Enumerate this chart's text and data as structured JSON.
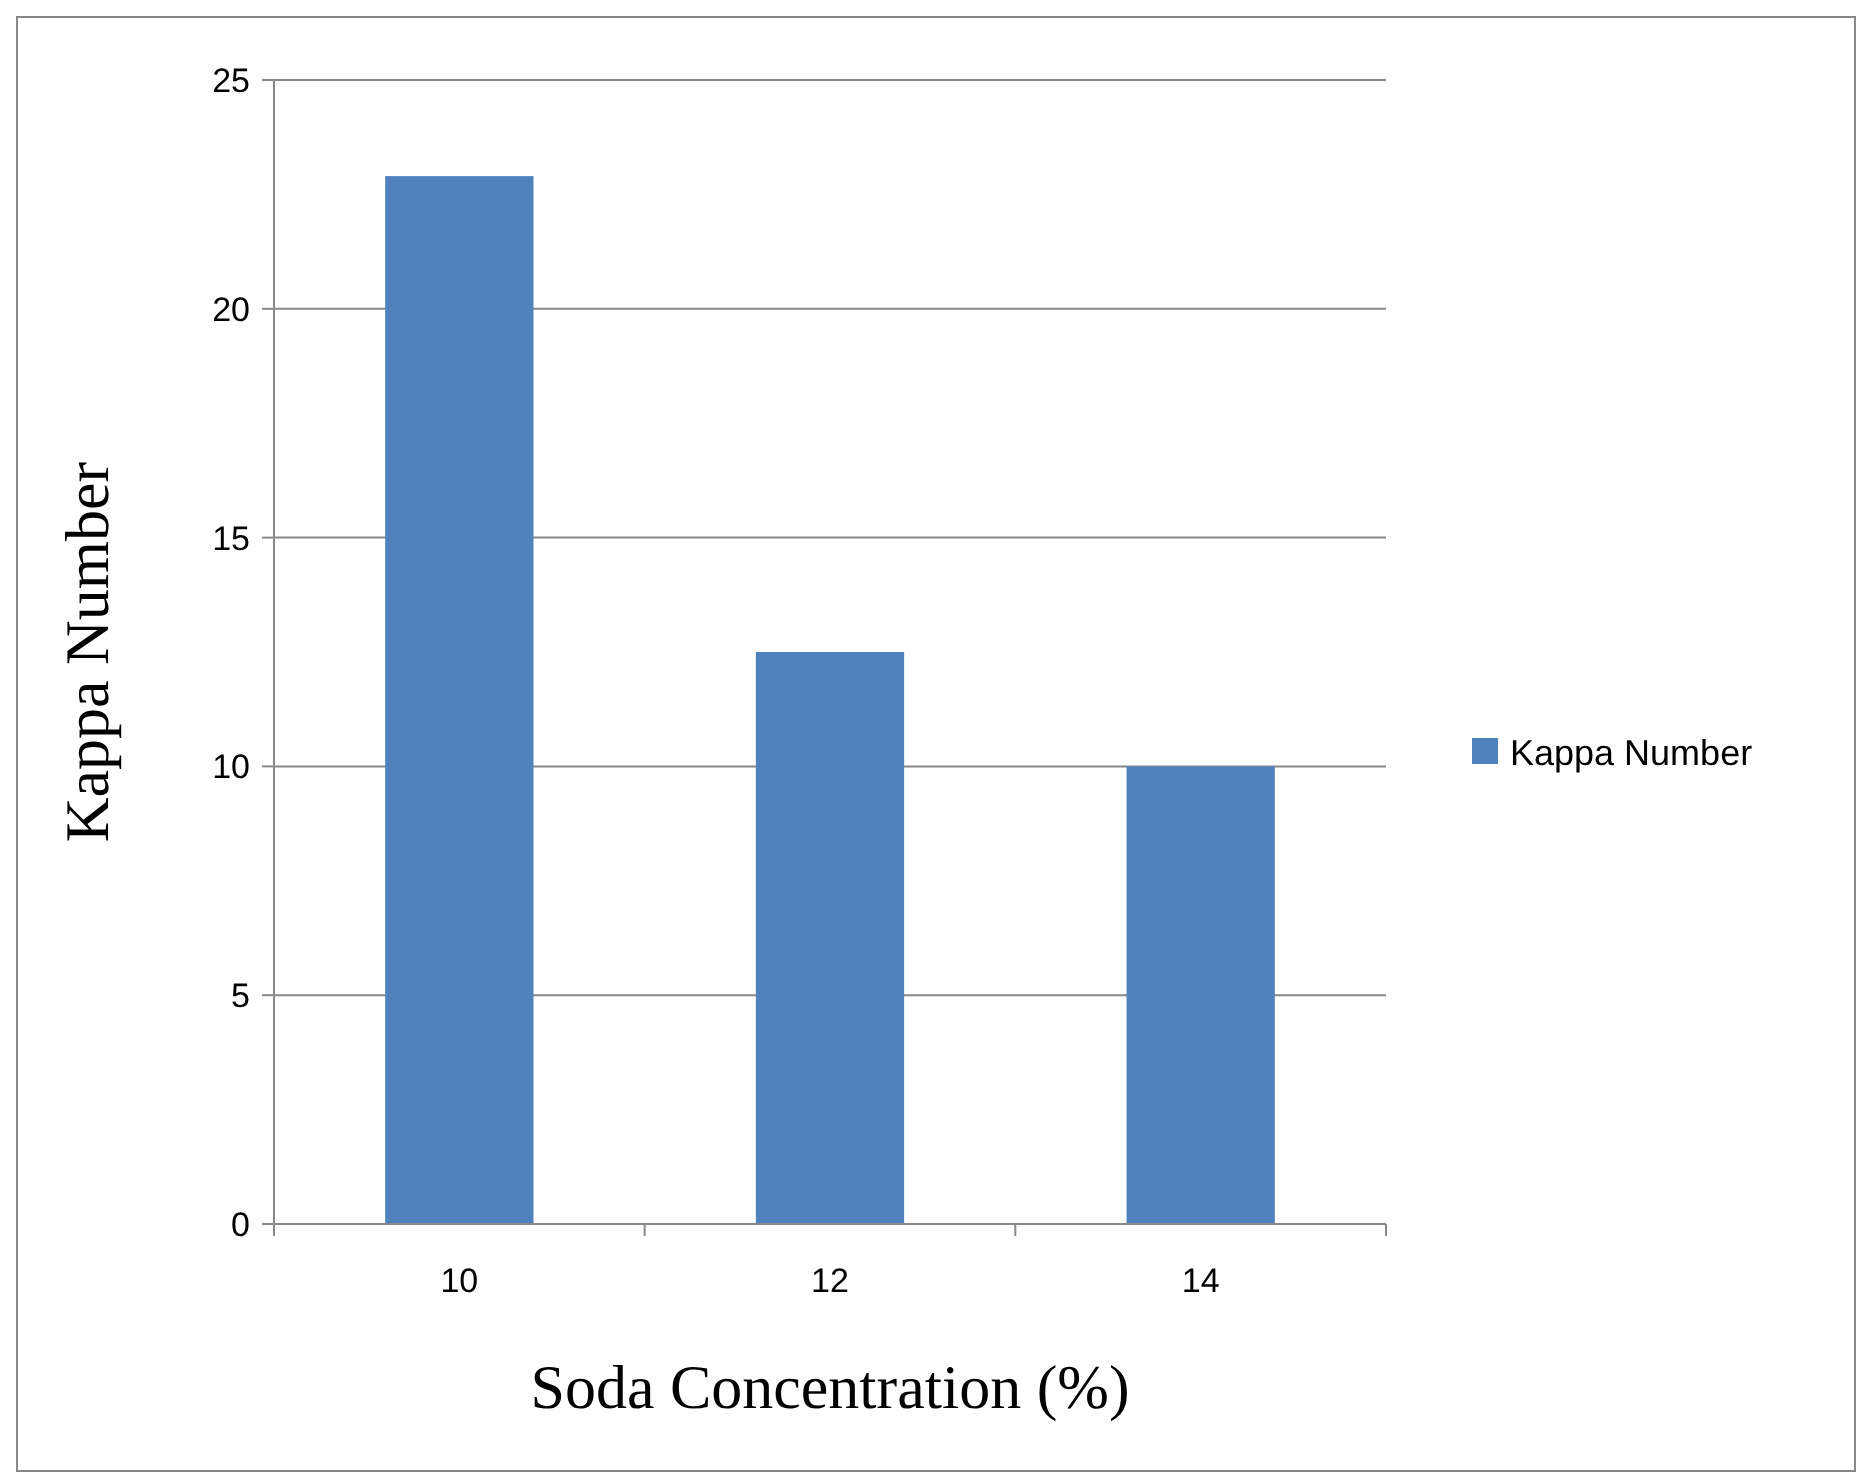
{
  "chart_data": {
    "type": "bar",
    "xlabel": "Soda Concentration (%)",
    "ylabel": "Kappa Number",
    "categories": [
      "10",
      "12",
      "14"
    ],
    "series": [
      {
        "name": "Kappa Number",
        "color": "#4f81bd",
        "values": [
          22.9,
          12.5,
          10
        ]
      }
    ],
    "ylim": [
      0,
      25
    ],
    "yticks": [
      0,
      5,
      10,
      15,
      20,
      25
    ],
    "grid": "y",
    "legend": "right"
  }
}
